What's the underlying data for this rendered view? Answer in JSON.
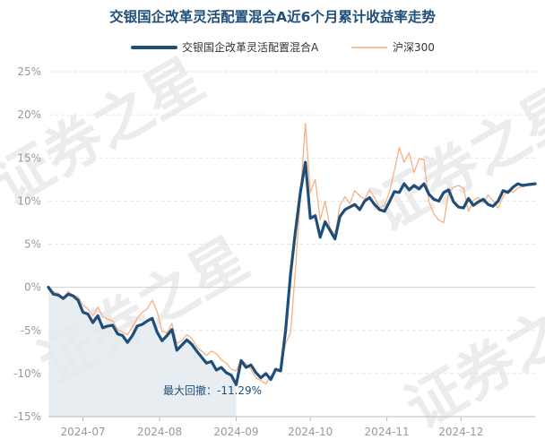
{
  "chart_data": {
    "type": "line",
    "title": "交银国企改革灵活配置混合A近6个月累计收益率走势",
    "watermark": "证券之星",
    "y_unit": "%",
    "ylim": [
      -15,
      25
    ],
    "y_ticks": [
      "25%",
      "20%",
      "15%",
      "10%",
      "5%",
      "0%",
      "-5%",
      "-10%",
      "-15%"
    ],
    "x_tick_labels": [
      "2024-07",
      "2024-08",
      "2024-09",
      "2024-10",
      "2024-11",
      "2024-12"
    ],
    "x_range": [
      "2024-06-17",
      "2024-12-31"
    ],
    "x_ticks": [
      "2024-07-01",
      "2024-08-01",
      "2024-09-01",
      "2024-10-01",
      "2024-11-01",
      "2024-12-01"
    ],
    "grid": "horizontal",
    "legend_position": "top",
    "colors": {
      "fund": "#1f4e79",
      "index": "#f4b183",
      "drawdown_fill": "#e4eaf0",
      "title": "#1f4e79"
    },
    "annotation": {
      "text": "最大回撤：-11.29%",
      "drawdown_start": "2024-06-17",
      "drawdown_end": "2024-09-02",
      "value": -11.29
    },
    "series": [
      {
        "name": "交银国企改革灵活配置混合A",
        "x": [
          "2024-06-17",
          "2024-06-19",
          "2024-06-21",
          "2024-06-23",
          "2024-06-25",
          "2024-06-27",
          "2024-06-29",
          "2024-07-01",
          "2024-07-03",
          "2024-07-05",
          "2024-07-07",
          "2024-07-09",
          "2024-07-11",
          "2024-07-13",
          "2024-07-15",
          "2024-07-17",
          "2024-07-19",
          "2024-07-21",
          "2024-07-23",
          "2024-07-25",
          "2024-07-27",
          "2024-07-29",
          "2024-07-31",
          "2024-08-02",
          "2024-08-04",
          "2024-08-06",
          "2024-08-08",
          "2024-08-10",
          "2024-08-12",
          "2024-08-14",
          "2024-08-16",
          "2024-08-18",
          "2024-08-20",
          "2024-08-22",
          "2024-08-24",
          "2024-08-26",
          "2024-08-28",
          "2024-08-30",
          "2024-09-01",
          "2024-09-03",
          "2024-09-05",
          "2024-09-07",
          "2024-09-09",
          "2024-09-11",
          "2024-09-13",
          "2024-09-15",
          "2024-09-17",
          "2024-09-19",
          "2024-09-21",
          "2024-09-23",
          "2024-09-25",
          "2024-09-27",
          "2024-09-29",
          "2024-10-01",
          "2024-10-03",
          "2024-10-05",
          "2024-10-07",
          "2024-10-09",
          "2024-10-11",
          "2024-10-13",
          "2024-10-15",
          "2024-10-17",
          "2024-10-19",
          "2024-10-21",
          "2024-10-23",
          "2024-10-25",
          "2024-10-27",
          "2024-10-29",
          "2024-10-31",
          "2024-11-02",
          "2024-11-04",
          "2024-11-06",
          "2024-11-08",
          "2024-11-10",
          "2024-11-12",
          "2024-11-14",
          "2024-11-16",
          "2024-11-18",
          "2024-11-20",
          "2024-11-22",
          "2024-11-24",
          "2024-11-26",
          "2024-11-28",
          "2024-11-30",
          "2024-12-02",
          "2024-12-04",
          "2024-12-06",
          "2024-12-08",
          "2024-12-10",
          "2024-12-12",
          "2024-12-14",
          "2024-12-16",
          "2024-12-18",
          "2024-12-20",
          "2024-12-22",
          "2024-12-24",
          "2024-12-26",
          "2024-12-28",
          "2024-12-31"
        ],
        "values": [
          0.0,
          -0.8,
          -0.9,
          -1.3,
          -0.8,
          -1.0,
          -1.5,
          -2.9,
          -3.1,
          -4.1,
          -3.3,
          -4.7,
          -4.5,
          -4.4,
          -5.4,
          -5.6,
          -6.4,
          -5.6,
          -4.5,
          -4.3,
          -3.9,
          -3.6,
          -5.2,
          -6.2,
          -5.6,
          -4.9,
          -7.3,
          -6.7,
          -6.1,
          -6.6,
          -7.4,
          -8.1,
          -8.8,
          -8.6,
          -9.6,
          -9.3,
          -9.9,
          -10.2,
          -11.29,
          -8.5,
          -9.3,
          -9.0,
          -9.9,
          -10.5,
          -10.0,
          -10.7,
          -9.5,
          -9.7,
          -5.0,
          1.5,
          6.5,
          11.0,
          14.5,
          8.0,
          8.3,
          5.8,
          7.6,
          6.6,
          5.6,
          8.2,
          9.0,
          9.3,
          9.6,
          9.0,
          10.0,
          10.4,
          9.6,
          9.0,
          8.8,
          9.9,
          11.1,
          11.0,
          12.0,
          11.3,
          11.8,
          11.4,
          12.0,
          10.8,
          10.2,
          10.0,
          11.0,
          11.3,
          9.9,
          9.3,
          9.2,
          10.3,
          9.5,
          9.9,
          10.2,
          9.6,
          9.4,
          10.0,
          11.2,
          11.0,
          11.6,
          12.0,
          11.8,
          11.9,
          12.0
        ]
      },
      {
        "name": "沪深300",
        "x": [
          "2024-06-17",
          "2024-06-19",
          "2024-06-21",
          "2024-06-23",
          "2024-06-25",
          "2024-06-27",
          "2024-06-29",
          "2024-07-01",
          "2024-07-03",
          "2024-07-05",
          "2024-07-07",
          "2024-07-09",
          "2024-07-11",
          "2024-07-13",
          "2024-07-15",
          "2024-07-17",
          "2024-07-19",
          "2024-07-21",
          "2024-07-23",
          "2024-07-25",
          "2024-07-27",
          "2024-07-29",
          "2024-07-31",
          "2024-08-02",
          "2024-08-04",
          "2024-08-06",
          "2024-08-08",
          "2024-08-10",
          "2024-08-12",
          "2024-08-14",
          "2024-08-16",
          "2024-08-18",
          "2024-08-20",
          "2024-08-22",
          "2024-08-24",
          "2024-08-26",
          "2024-08-28",
          "2024-08-30",
          "2024-09-01",
          "2024-09-03",
          "2024-09-05",
          "2024-09-07",
          "2024-09-09",
          "2024-09-11",
          "2024-09-13",
          "2024-09-15",
          "2024-09-17",
          "2024-09-19",
          "2024-09-21",
          "2024-09-23",
          "2024-09-25",
          "2024-09-27",
          "2024-09-29",
          "2024-10-01",
          "2024-10-03",
          "2024-10-05",
          "2024-10-07",
          "2024-10-09",
          "2024-10-11",
          "2024-10-13",
          "2024-10-15",
          "2024-10-17",
          "2024-10-19",
          "2024-10-21",
          "2024-10-23",
          "2024-10-25",
          "2024-10-27",
          "2024-10-29",
          "2024-10-31",
          "2024-11-02",
          "2024-11-04",
          "2024-11-06",
          "2024-11-08",
          "2024-11-10",
          "2024-11-12",
          "2024-11-14",
          "2024-11-16",
          "2024-11-18",
          "2024-11-20",
          "2024-11-22",
          "2024-11-24",
          "2024-11-26",
          "2024-11-28",
          "2024-11-30",
          "2024-12-02",
          "2024-12-04",
          "2024-12-06",
          "2024-12-08",
          "2024-12-10",
          "2024-12-12",
          "2024-12-14",
          "2024-12-16",
          "2024-12-18",
          "2024-12-20",
          "2024-12-22",
          "2024-12-24",
          "2024-12-26",
          "2024-12-28",
          "2024-12-31"
        ],
        "values": [
          0.0,
          -0.5,
          -0.7,
          -1.2,
          -0.5,
          -0.9,
          -1.1,
          -2.1,
          -2.5,
          -3.3,
          -2.3,
          -3.4,
          -3.7,
          -3.9,
          -4.9,
          -5.2,
          -5.5,
          -4.6,
          -3.6,
          -2.9,
          -2.5,
          -1.5,
          -2.8,
          -5.1,
          -5.3,
          -4.2,
          -6.5,
          -6.2,
          -5.5,
          -5.9,
          -6.9,
          -7.4,
          -7.9,
          -7.4,
          -7.7,
          -8.4,
          -8.8,
          -9.5,
          -9.7,
          -8.4,
          -8.9,
          -9.5,
          -10.5,
          -10.8,
          -11.2,
          -10.3,
          -9.6,
          -9.6,
          -6.5,
          -5.3,
          2.0,
          10.5,
          19.0,
          11.0,
          12.5,
          7.8,
          10.0,
          6.9,
          6.0,
          9.5,
          10.5,
          9.7,
          11.2,
          10.6,
          10.2,
          11.3,
          10.4,
          9.2,
          9.5,
          11.0,
          13.5,
          16.2,
          14.5,
          15.6,
          13.3,
          14.9,
          14.8,
          9.9,
          8.5,
          7.8,
          7.5,
          11.0,
          11.6,
          11.8,
          11.5,
          8.8,
          10.1,
          10.4,
          9.8,
          10.7,
          10.0,
          9.2,
          10.5,
          11.3,
          11.0,
          11.5,
          11.7,
          11.8,
          11.9
        ]
      }
    ]
  }
}
